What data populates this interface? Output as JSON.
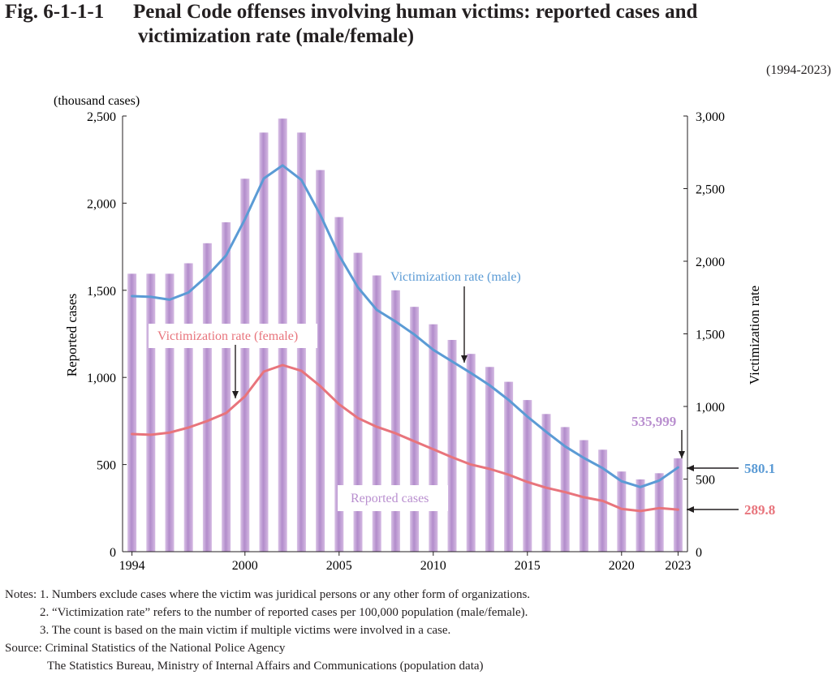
{
  "figure": {
    "number": "Fig. 6-1-1-1",
    "title_line1": "Penal Code offenses involving human victims: reported cases and",
    "title_line2": "victimization rate (male/female)",
    "range": "(1994-2023)"
  },
  "chart_data": {
    "type": "bar",
    "x": [
      1994,
      1995,
      1996,
      1997,
      1998,
      1999,
      2000,
      2001,
      2002,
      2003,
      2004,
      2005,
      2006,
      2007,
      2008,
      2009,
      2010,
      2011,
      2012,
      2013,
      2014,
      2015,
      2016,
      2017,
      2018,
      2019,
      2020,
      2021,
      2022,
      2023
    ],
    "x_tick_labels": [
      "1994",
      "2000",
      "2005",
      "2010",
      "2015",
      "2020",
      "2023"
    ],
    "left_axis": {
      "unit": "(thousand cases)",
      "label": "Reported cases",
      "ylim": [
        0,
        2500
      ],
      "ticks": [
        "0",
        "500",
        "1,000",
        "1,500",
        "2,000",
        "2,500"
      ]
    },
    "right_axis": {
      "label": "Victimization rate",
      "ylim": [
        0,
        3000
      ],
      "ticks": [
        "0",
        "500",
        "1,000",
        "1,500",
        "2,000",
        "2,500",
        "3,000"
      ]
    },
    "series": [
      {
        "name": "Reported cases",
        "kind": "bar",
        "axis": "left",
        "color": "#c7a6d8",
        "values": [
          1595,
          1595,
          1595,
          1655,
          1770,
          1890,
          2140,
          2405,
          2485,
          2405,
          2190,
          1920,
          1715,
          1585,
          1500,
          1405,
          1305,
          1215,
          1135,
          1060,
          975,
          870,
          790,
          715,
          640,
          585,
          460,
          415,
          450,
          536
        ]
      },
      {
        "name": "Victimization rate (male)",
        "kind": "line",
        "axis": "right",
        "color": "#5b9bd5",
        "values": [
          1760,
          1755,
          1735,
          1785,
          1900,
          2040,
          2290,
          2570,
          2660,
          2560,
          2320,
          2040,
          1820,
          1665,
          1585,
          1495,
          1390,
          1310,
          1230,
          1145,
          1045,
          930,
          825,
          725,
          645,
          575,
          485,
          445,
          490,
          580.1
        ]
      },
      {
        "name": "Victimization rate (female)",
        "kind": "line",
        "axis": "right",
        "color": "#e8747c",
        "values": [
          810,
          805,
          820,
          855,
          900,
          955,
          1070,
          1240,
          1285,
          1245,
          1140,
          1015,
          920,
          860,
          815,
          760,
          705,
          650,
          600,
          570,
          530,
          480,
          440,
          410,
          375,
          350,
          295,
          280,
          300,
          289.8
        ]
      }
    ],
    "annotations": {
      "male_label": "Victimization rate (male)",
      "female_label": "Victimization rate (female)",
      "bar_label": "Reported cases",
      "last_cases": "535,999",
      "last_male": "580.1",
      "last_female": "289.8"
    },
    "grid": false
  },
  "notes": [
    "Notes: 1. Numbers exclude cases where the victim was juridical persons or any other form of organizations.",
    "2. “Victimization rate” refers to the number of reported cases per 100,000 population (male/female).",
    "3. The count is based on the main victim if multiple victims were involved in a case."
  ],
  "source": [
    "Source: Criminal Statistics of the National Police Agency",
    "The Statistics Bureau, Ministry of Internal Affairs and Communications (population data)"
  ]
}
